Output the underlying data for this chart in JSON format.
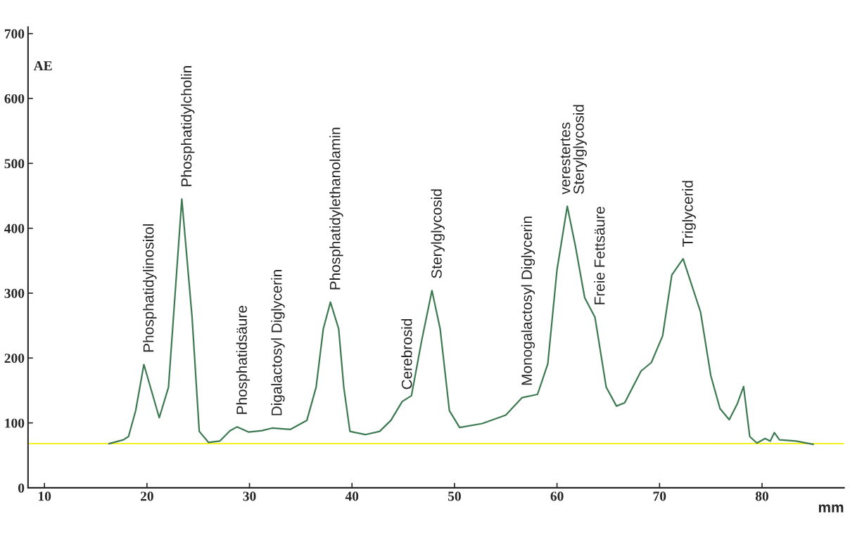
{
  "chart_data": {
    "type": "line",
    "xlabel": "mm",
    "ylabel": "AE",
    "x": [
      16.3,
      17.7,
      18.2,
      18.9,
      19.7,
      21.2,
      22.1,
      23.4,
      24.4,
      25.1,
      26.0,
      27.1,
      28.1,
      28.8,
      29.9,
      31.2,
      32.2,
      34.0,
      35.6,
      36.5,
      37.2,
      37.9,
      38.7,
      39.2,
      39.8,
      41.3,
      42.7,
      43.8,
      44.9,
      45.8,
      46.8,
      47.8,
      48.6,
      49.5,
      50.5,
      52.7,
      55.0,
      56.6,
      58.1,
      59.1,
      60.0,
      61.0,
      61.8,
      62.7,
      63.7,
      64.8,
      65.8,
      66.6,
      68.2,
      69.2,
      70.3,
      71.2,
      72.3,
      74.0,
      75.0,
      75.9,
      76.8,
      77.6,
      78.2,
      78.8,
      79.5,
      80.3,
      80.8,
      81.2,
      81.7,
      83.3,
      85.0
    ],
    "series": [
      {
        "color": "#3d7a52",
        "values": [
          68,
          74,
          79,
          119,
          190,
          108,
          155,
          445,
          263,
          87,
          70,
          72,
          88,
          94,
          86,
          88,
          92,
          90,
          104,
          155,
          245,
          286,
          245,
          155,
          87,
          82,
          87,
          104,
          133,
          142,
          227,
          304,
          245,
          119,
          93,
          99,
          112,
          139,
          144,
          191,
          336,
          434,
          372,
          293,
          263,
          155,
          126,
          131,
          180,
          193,
          234,
          328,
          353,
          271,
          173,
          122,
          105,
          130,
          156,
          79,
          69,
          76,
          72,
          85,
          74,
          72,
          67
        ]
      }
    ],
    "xlim": [
      8.4,
      88
    ],
    "ylim": [
      0,
      710
    ],
    "xticks": [
      10,
      20,
      30,
      40,
      50,
      60,
      70,
      80
    ],
    "yticks": [
      0,
      100,
      200,
      300,
      400,
      500,
      600,
      700
    ],
    "ref_lines": [
      {
        "axis": "y",
        "value": 68,
        "color": "#f0f000"
      }
    ],
    "grid": false,
    "marker": "none",
    "line_style": "solid",
    "annotations": [
      {
        "text": "Phosphatidylinositol",
        "x": 19.7,
        "y": 190
      },
      {
        "text": "Phosphatidylcholin",
        "x": 23.4,
        "y": 445
      },
      {
        "text": "Phosphatidsäure",
        "x": 28.8,
        "y": 94
      },
      {
        "text": "Digalactosyl Diglycerin",
        "x": 32.2,
        "y": 92
      },
      {
        "text": "Phosphatidylethanolamin",
        "x": 37.9,
        "y": 286
      },
      {
        "text": "Cerebrosid",
        "x": 44.9,
        "y": 133
      },
      {
        "text": "Sterylglycosid",
        "x": 47.8,
        "y": 304
      },
      {
        "text": "Monogalactosyl Diglycerin",
        "x": 56.6,
        "y": 139
      },
      {
        "text": "verestertes\nSterylglycosid",
        "x": 61.0,
        "y": 434
      },
      {
        "text": "Freie Fettsäure",
        "x": 63.7,
        "y": 263
      },
      {
        "text": "Triglycerid",
        "x": 72.3,
        "y": 353
      }
    ]
  }
}
